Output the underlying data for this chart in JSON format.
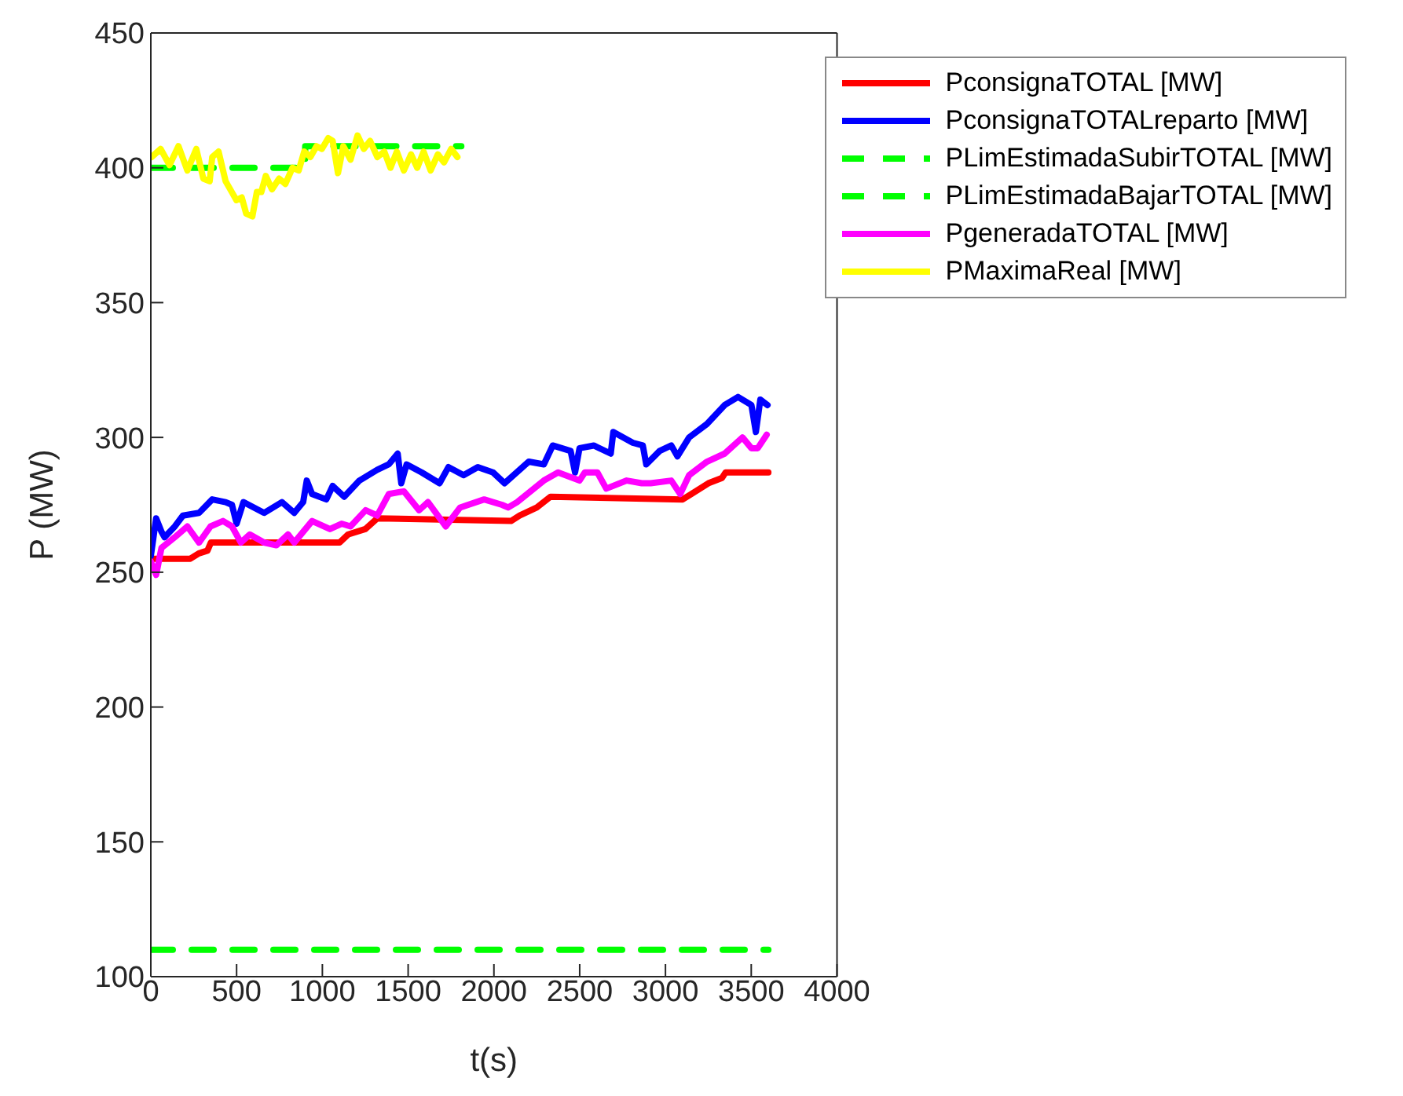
{
  "chart_data": {
    "type": "line",
    "xlabel": "t(s)",
    "ylabel": "P (MW)",
    "xlim": [
      0,
      4000
    ],
    "xticks": [
      0,
      500,
      1000,
      1500,
      2000,
      2500,
      3000,
      3500,
      4000
    ],
    "ylim": [
      100,
      450
    ],
    "yticks": [
      100,
      150,
      200,
      250,
      300,
      350,
      400,
      450
    ],
    "grid": false,
    "legend": "top right",
    "marker": "none",
    "series": [
      {
        "name": "PconsignaTOTAL [MW]",
        "color": "#ff0000",
        "line_style": "solid",
        "x": [
          0,
          230,
          280,
          330,
          350,
          1100,
          1150,
          1250,
          1320,
          2100,
          2150,
          2250,
          2330,
          3100,
          3150,
          3250,
          3330,
          3350,
          3600
        ],
        "values": [
          255,
          255,
          257,
          258,
          261,
          261,
          264,
          266,
          270,
          269,
          271,
          274,
          278,
          277,
          279,
          283,
          285,
          287,
          287
        ]
      },
      {
        "name": "PconsignaTOTALreparto [MW]",
        "color": "#0000ff",
        "line_style": "solid",
        "x": [
          0,
          31,
          62,
          80,
          140,
          187,
          281,
          358,
          436,
          473,
          500,
          540,
          660,
          764,
          836,
          888,
          909,
          940,
          1023,
          1060,
          1127,
          1216,
          1320,
          1387,
          1439,
          1460,
          1491,
          1579,
          1683,
          1735,
          1823,
          1906,
          1995,
          2062,
          2203,
          2291,
          2343,
          2447,
          2473,
          2499,
          2582,
          2681,
          2696,
          2810,
          2868,
          2888,
          2966,
          3034,
          3070,
          3138,
          3242,
          3345,
          3423,
          3501,
          3527,
          3553,
          3595
        ],
        "values": [
          256,
          270,
          265,
          263,
          267,
          271,
          272,
          277,
          276,
          275,
          268,
          276,
          272,
          276,
          272,
          276,
          284,
          279,
          277,
          282,
          278,
          284,
          288,
          290,
          294,
          283,
          290,
          287,
          283,
          289,
          286,
          289,
          287,
          283,
          291,
          290,
          297,
          295,
          287,
          296,
          297,
          294,
          302,
          298,
          297,
          290,
          295,
          297,
          293,
          300,
          305,
          312,
          315,
          312,
          302,
          314,
          312
        ]
      },
      {
        "name": "PLimEstimadaSubirTOTAL [MW]",
        "color": "#00ff00",
        "line_style": "dashed",
        "x": [
          0,
          900,
          900,
          1810
        ],
        "values": [
          400,
          400,
          408,
          408
        ]
      },
      {
        "name": "PLimEstimadaBajarTOTAL [MW]",
        "color": "#00ff00",
        "line_style": "dashed",
        "x": [
          0,
          3600
        ],
        "values": [
          110,
          110
        ]
      },
      {
        "name": "PgeneradaTOTAL [MW]",
        "color": "#ff00ff",
        "line_style": "solid",
        "x": [
          0,
          31,
          62,
          140,
          213,
          281,
          348,
          421,
          473,
          525,
          577,
          660,
          732,
          800,
          836,
          940,
          1044,
          1112,
          1164,
          1252,
          1320,
          1387,
          1475,
          1564,
          1616,
          1719,
          1803,
          1943,
          2047,
          2083,
          2135,
          2291,
          2374,
          2499,
          2530,
          2603,
          2655,
          2774,
          2862,
          2914,
          3034,
          3086,
          3138,
          3242,
          3345,
          3449,
          3501,
          3538,
          3590
        ],
        "values": [
          254,
          249,
          259,
          263,
          267,
          261,
          267,
          269,
          267,
          261,
          264,
          261,
          260,
          264,
          261,
          269,
          266,
          268,
          267,
          273,
          271,
          279,
          280,
          273,
          276,
          267,
          274,
          277,
          275,
          274,
          276,
          284,
          287,
          284,
          287,
          287,
          281,
          284,
          283,
          283,
          284,
          279,
          286,
          291,
          294,
          300,
          296,
          296,
          301
        ]
      },
      {
        "name": "PMaximaReal [MW]",
        "color": "#ffff00",
        "line_style": "solid",
        "x": [
          5,
          57,
          109,
          161,
          213,
          265,
          306,
          343,
          358,
          395,
          436,
          472,
          499,
          530,
          556,
          592,
          618,
          644,
          670,
          706,
          748,
          784,
          826,
          862,
          894,
          930,
          966,
          997,
          1034,
          1060,
          1091,
          1122,
          1164,
          1205,
          1242,
          1278,
          1320,
          1361,
          1397,
          1434,
          1475,
          1517,
          1553,
          1590,
          1631,
          1673,
          1709,
          1751,
          1787
        ],
        "values": [
          404,
          407,
          401,
          408,
          399,
          407,
          396,
          395,
          404,
          406,
          395,
          391,
          388,
          389,
          383,
          382,
          391,
          391,
          397,
          392,
          396,
          394,
          400,
          399,
          406,
          404,
          408,
          407,
          411,
          410,
          398,
          408,
          403,
          412,
          407,
          410,
          404,
          406,
          400,
          406,
          399,
          405,
          400,
          406,
          399,
          405,
          402,
          407,
          404
        ]
      }
    ]
  }
}
